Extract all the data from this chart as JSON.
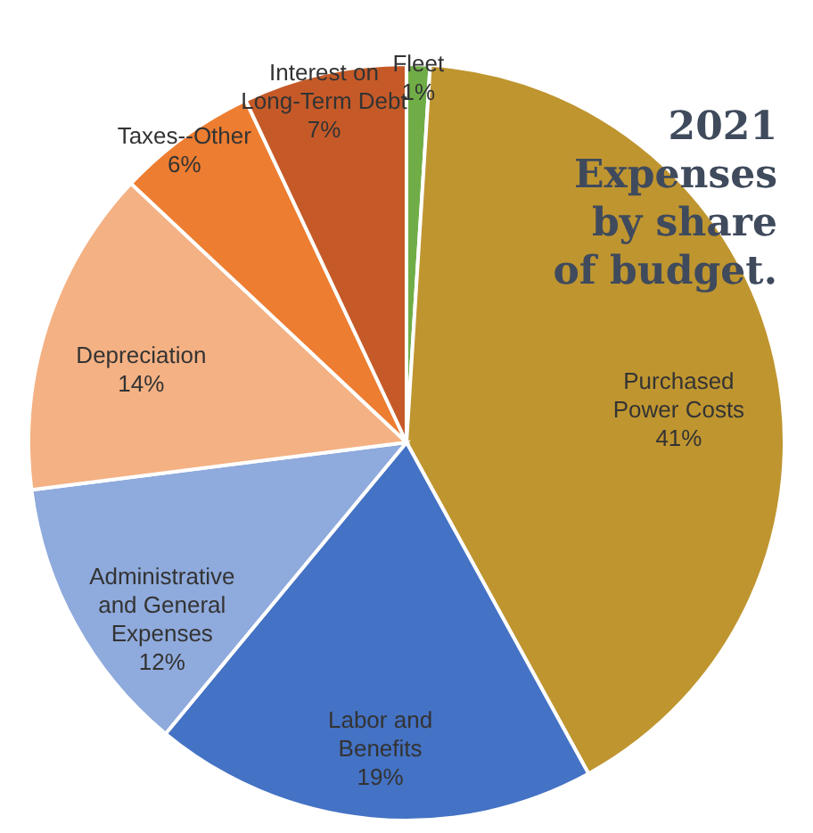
{
  "chart_data": {
    "type": "pie",
    "title": "2021 Expenses by share of budget.",
    "categories": [
      "Fleet",
      "Purchased Power Costs",
      "Labor and Benefits",
      "Administrative and General Expenses",
      "Depreciation",
      "Taxes--Other",
      "Interest on Long-Term Debt"
    ],
    "values": [
      1,
      41,
      19,
      12,
      14,
      6,
      7
    ],
    "colors": [
      "#70ad47",
      "#bf9530",
      "#4472c4",
      "#8faadc",
      "#f4b183",
      "#ed7d31",
      "#c55a28"
    ],
    "value_labels": [
      "1%",
      "41%",
      "19%",
      "12%",
      "14%",
      "6%",
      "7%"
    ]
  }
}
